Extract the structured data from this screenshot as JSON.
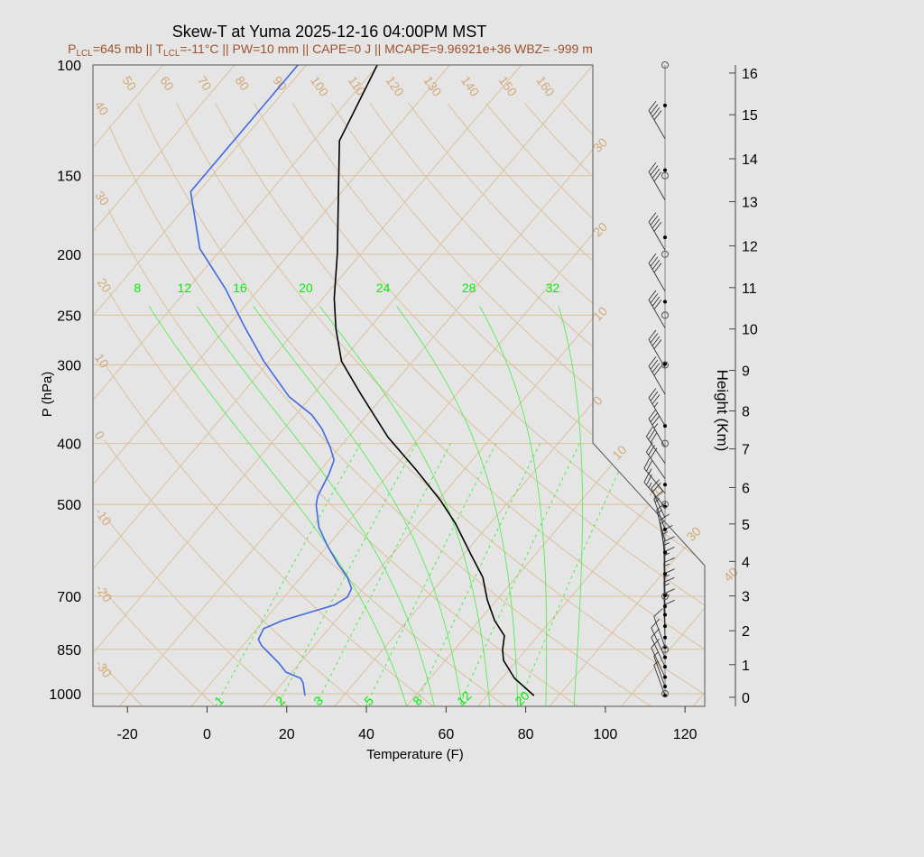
{
  "chart_data": {
    "type": "line",
    "title": "Skew-T at Yuma 2025-12-16 04:00PM MST",
    "subtitle": {
      "p_lcl_label": "P",
      "lcl_sub": "LCL",
      "p_lcl_value": "=645 mb || T",
      "t_lcl_value": "=-11°C || PW=10 mm || CAPE=0 J || MCAPE=9.96921e+36 WBZ= -999 m"
    },
    "xlabel": "Temperature (F)",
    "ylabel": "P (hPa)",
    "y2label": "Height (Km)",
    "x_ticks": [
      -20,
      0,
      20,
      40,
      60,
      80,
      100,
      120
    ],
    "y_ticks": [
      100,
      150,
      200,
      250,
      300,
      400,
      500,
      700,
      850,
      1000
    ],
    "yscale": "log",
    "ylim": [
      1050,
      100
    ],
    "height_axis": [
      {
        "km": 0,
        "p": 1013
      },
      {
        "km": 1,
        "p": 899
      },
      {
        "km": 2,
        "p": 794
      },
      {
        "km": 3,
        "p": 699
      },
      {
        "km": 4,
        "p": 616
      },
      {
        "km": 5,
        "p": 537
      },
      {
        "km": 6,
        "p": 470
      },
      {
        "km": 7,
        "p": 408
      },
      {
        "km": 8,
        "p": 355
      },
      {
        "km": 9,
        "p": 306
      },
      {
        "km": 10,
        "p": 263
      },
      {
        "km": 11,
        "p": 226
      },
      {
        "km": 12,
        "p": 194
      },
      {
        "km": 13,
        "p": 165
      },
      {
        "km": 14,
        "p": 141
      },
      {
        "km": 15,
        "p": 120
      },
      {
        "km": 16,
        "p": 103
      }
    ],
    "isotherms_c": [
      -30,
      -20,
      -10,
      0,
      10,
      20,
      30,
      40
    ],
    "isotherm_labels": [
      "30",
      "20",
      "10",
      "0",
      "10",
      "20",
      "30",
      "40"
    ],
    "dry_adiabats_c": [
      -30,
      -20,
      -10,
      0,
      10,
      20,
      30,
      40,
      50,
      60,
      70,
      80,
      90,
      100,
      110,
      120,
      130,
      140,
      150,
      160
    ],
    "moist_adiabats_c": [
      8,
      12,
      16,
      20,
      24,
      28,
      32
    ],
    "mixing_ratios_gkg": [
      1,
      2,
      3,
      5,
      8,
      12,
      20
    ],
    "temperature_f": [
      {
        "p": 1007,
        "t": 79.8
      },
      {
        "p": 945,
        "t": 71.2
      },
      {
        "p": 885,
        "t": 64.6
      },
      {
        "p": 851,
        "t": 62.1
      },
      {
        "p": 809,
        "t": 59.6
      },
      {
        "p": 765,
        "t": 53.9
      },
      {
        "p": 709,
        "t": 47.6
      },
      {
        "p": 653,
        "t": 41.7
      },
      {
        "p": 601,
        "t": 33.9
      },
      {
        "p": 536,
        "t": 23.3
      },
      {
        "p": 493,
        "t": 14.7
      },
      {
        "p": 439,
        "t": 1.6
      },
      {
        "p": 391,
        "t": -12.0
      },
      {
        "p": 334,
        "t": -28.0
      },
      {
        "p": 296,
        "t": -39.9
      },
      {
        "p": 263,
        "t": -48.2
      },
      {
        "p": 235,
        "t": -55.2
      },
      {
        "p": 199,
        "t": -64.1
      },
      {
        "p": 153,
        "t": -79.1
      },
      {
        "p": 132,
        "t": -87.5
      },
      {
        "p": 100,
        "t": -94.2
      }
    ],
    "dewpoint_f": [
      {
        "p": 1007,
        "t": 22.3
      },
      {
        "p": 961,
        "t": 19.1
      },
      {
        "p": 945,
        "t": 17.5
      },
      {
        "p": 924,
        "t": 12.5
      },
      {
        "p": 894,
        "t": 8.8
      },
      {
        "p": 862,
        "t": 4.2
      },
      {
        "p": 839,
        "t": 0.8
      },
      {
        "p": 820,
        "t": -1.4
      },
      {
        "p": 788,
        "t": -2.4
      },
      {
        "p": 765,
        "t": 0.6
      },
      {
        "p": 723,
        "t": 10.3
      },
      {
        "p": 702,
        "t": 11.9
      },
      {
        "p": 680,
        "t": 11.1
      },
      {
        "p": 653,
        "t": 7.7
      },
      {
        "p": 622,
        "t": 2.5
      },
      {
        "p": 582,
        "t": -4.0
      },
      {
        "p": 544,
        "t": -10.1
      },
      {
        "p": 501,
        "t": -15.6
      },
      {
        "p": 485,
        "t": -17.1
      },
      {
        "p": 447,
        "t": -19.0
      },
      {
        "p": 425,
        "t": -20.7
      },
      {
        "p": 405,
        "t": -24.5
      },
      {
        "p": 379,
        "t": -30.4
      },
      {
        "p": 360,
        "t": -36.0
      },
      {
        "p": 337,
        "t": -45.5
      },
      {
        "p": 296,
        "t": -59.4
      },
      {
        "p": 259,
        "t": -72.3
      },
      {
        "p": 227,
        "t": -84.5
      },
      {
        "p": 196,
        "t": -99.5
      },
      {
        "p": 159,
        "t": -114.0
      },
      {
        "p": 100,
        "t": -114.1
      }
    ],
    "wind_barbs": [
      {
        "p": 131,
        "dir": 330,
        "kt": 40
      },
      {
        "p": 164,
        "dir": 330,
        "kt": 40
      },
      {
        "p": 197,
        "dir": 330,
        "kt": 40
      },
      {
        "p": 229,
        "dir": 330,
        "kt": 40
      },
      {
        "p": 262,
        "dir": 330,
        "kt": 40
      },
      {
        "p": 303,
        "dir": 330,
        "kt": 40
      },
      {
        "p": 334,
        "dir": 330,
        "kt": 40
      },
      {
        "p": 375,
        "dir": 330,
        "kt": 35
      },
      {
        "p": 405,
        "dir": 330,
        "kt": 35
      },
      {
        "p": 430,
        "dir": 325,
        "kt": 30
      },
      {
        "p": 455,
        "dir": 325,
        "kt": 30
      },
      {
        "p": 480,
        "dir": 320,
        "kt": 25
      },
      {
        "p": 505,
        "dir": 320,
        "kt": 25
      },
      {
        "p": 525,
        "dir": 335,
        "kt": 20
      },
      {
        "p": 548,
        "dir": 340,
        "kt": 15
      },
      {
        "p": 572,
        "dir": 345,
        "kt": 15
      },
      {
        "p": 596,
        "dir": 350,
        "kt": 15
      },
      {
        "p": 620,
        "dir": 355,
        "kt": 15
      },
      {
        "p": 645,
        "dir": 358,
        "kt": 15
      },
      {
        "p": 670,
        "dir": 358,
        "kt": 15
      },
      {
        "p": 697,
        "dir": 358,
        "kt": 15
      },
      {
        "p": 726,
        "dir": 358,
        "kt": 15
      },
      {
        "p": 749,
        "dir": 358,
        "kt": 15
      },
      {
        "p": 781,
        "dir": 358,
        "kt": 15
      },
      {
        "p": 814,
        "dir": 358,
        "kt": 10
      },
      {
        "p": 843,
        "dir": 340,
        "kt": 10
      },
      {
        "p": 875,
        "dir": 335,
        "kt": 10
      },
      {
        "p": 906,
        "dir": 335,
        "kt": 10
      },
      {
        "p": 941,
        "dir": 335,
        "kt": 10
      },
      {
        "p": 974,
        "dir": 340,
        "kt": 5
      },
      {
        "p": 1007,
        "dir": 340,
        "kt": 5
      }
    ],
    "wind_levels_hpa": [
      116,
      147,
      188,
      238,
      299,
      375,
      465,
      504,
      548,
      596,
      645,
      697,
      726,
      749,
      781,
      814,
      843,
      875,
      906,
      941,
      974,
      1007
    ],
    "mandatory_levels_hpa": [
      100,
      150,
      200,
      250,
      300,
      400,
      500,
      700,
      850,
      1000
    ],
    "colors": {
      "temperature": "#000000",
      "dewpoint": "#4169e1",
      "subtitle": "#a0522d",
      "isopleths": "#dcc09c",
      "moist_adiabats": "#44ee44"
    },
    "grid": true,
    "legend": "none"
  }
}
